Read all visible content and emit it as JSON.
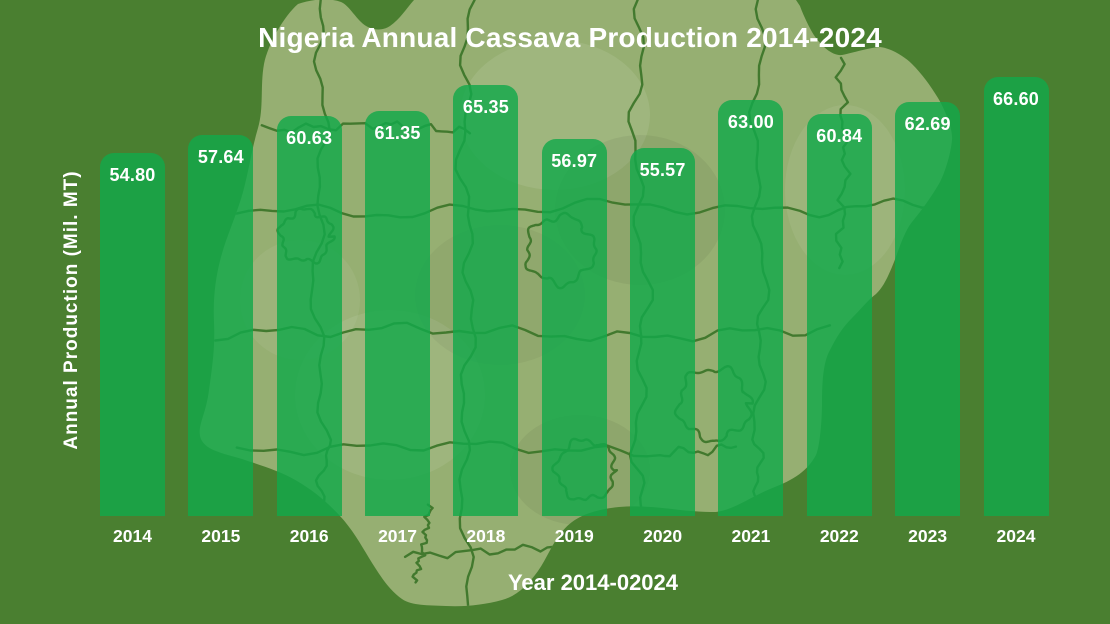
{
  "chart_data": {
    "type": "bar",
    "title": "Nigeria Annual Cassava Production 2014-2024",
    "xlabel": "Year 2014-02024",
    "ylabel": "Annual Production (Mil. MT)",
    "categories": [
      "2014",
      "2015",
      "2016",
      "2017",
      "2018",
      "2019",
      "2020",
      "2021",
      "2022",
      "2023",
      "2024"
    ],
    "values": [
      54.8,
      57.64,
      60.63,
      61.35,
      65.35,
      56.97,
      55.57,
      63.0,
      60.84,
      62.69,
      66.6
    ],
    "value_labels": [
      "54.80",
      "57.64",
      "60.63",
      "61.35",
      "65.35",
      "56.97",
      "55.57",
      "63.00",
      "60.84",
      "62.69",
      "66.60"
    ],
    "ylim": [
      0,
      70
    ],
    "grid": false,
    "legend": false,
    "background_decoration": "nigeria-map-silhouette-with-state-borders"
  },
  "colors": {
    "background": "#4A7F30",
    "bar": "rgba(18,168,74,0.82)",
    "map_fill": "#96AF72",
    "map_border": "#3E772B",
    "text": "#FFFFFF"
  }
}
